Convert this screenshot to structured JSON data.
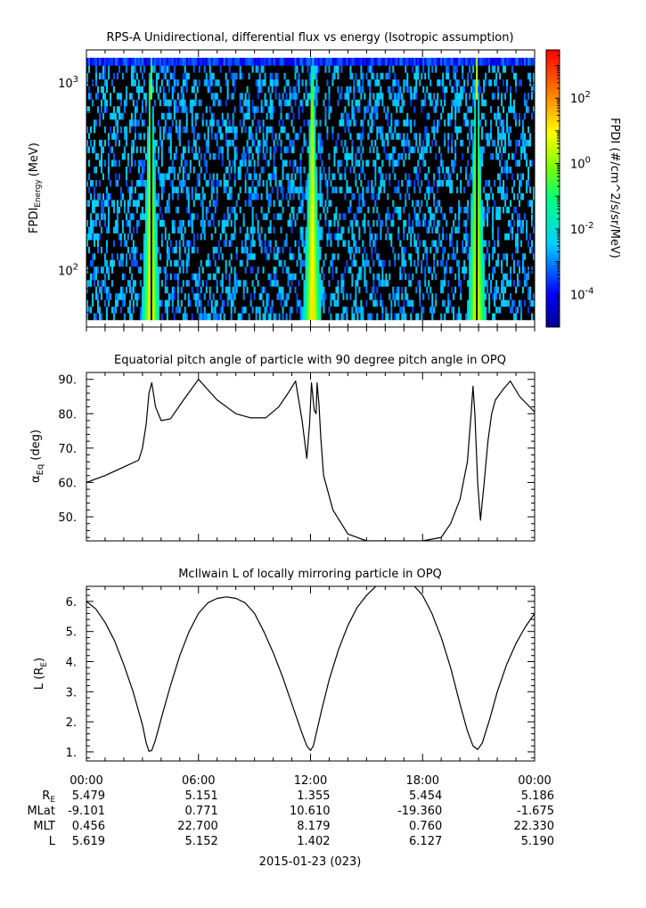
{
  "chart_data": [
    {
      "type": "heatmap",
      "title": "RPS-A Unidirectional, differential flux vs energy (Isotropic assumption)",
      "ylabel_main": "FPDI",
      "ylabel_sub": "Energy",
      "ylabel_unit": "(MeV)",
      "yscale": "log",
      "ylim": [
        50,
        1500
      ],
      "yticks": [
        100,
        1000
      ],
      "ytick_labels": [
        {
          "base": "10",
          "exp": "2",
          "value": 100
        },
        {
          "base": "10",
          "exp": "3",
          "value": 1000
        }
      ],
      "xlim_hours": [
        0,
        24
      ],
      "colorbar": {
        "label": "FPDI (#/cm^2/s/sr/MeV)",
        "scale": "log",
        "range": [
          1e-05,
          3000
        ],
        "ticks": [
          {
            "base": "10",
            "exp": "2",
            "value": 100
          },
          {
            "base": "10",
            "exp": "0",
            "value": 1
          },
          {
            "base": "10",
            "exp": "-2",
            "value": 0.01
          },
          {
            "base": "10",
            "exp": "-4",
            "value": 0.0001
          }
        ],
        "colormap": "rainbow"
      },
      "energy_channels": [
        57,
        62,
        67,
        73,
        79,
        86,
        93,
        101,
        110,
        119,
        129,
        140,
        152,
        165,
        179,
        195,
        211,
        229,
        249,
        270,
        293,
        318,
        345,
        375,
        407,
        442,
        480,
        521,
        566,
        614,
        667,
        724,
        786,
        853,
        926,
        1005,
        1091,
        1185,
        1300
      ],
      "belt_passes": [
        {
          "center_hour": 3.45,
          "peak_log_flux": 1.6
        },
        {
          "center_hour": 12.1,
          "peak_log_flux": 1.6
        },
        {
          "center_hour": 20.9,
          "peak_log_flux": 1.2
        }
      ],
      "background_log_flux": -4.2
    },
    {
      "type": "line",
      "title": "Equatorial pitch angle of particle with 90 degree pitch angle in OPQ",
      "ylabel_main": "α",
      "ylabel_sub": "Eq",
      "ylabel_unit": "(deg)",
      "ylim": [
        43,
        92
      ],
      "yticks": [
        50,
        60,
        70,
        80,
        90
      ],
      "ytick_labels": [
        "50.",
        "60.",
        "70.",
        "80.",
        "90."
      ],
      "x": [
        0,
        1,
        2,
        2.8,
        3.0,
        3.2,
        3.35,
        3.5,
        3.7,
        4.0,
        4.5,
        5.2,
        6.0,
        7.0,
        8.0,
        8.8,
        9.6,
        10.3,
        10.8,
        11.2,
        11.55,
        11.8,
        11.95,
        12.05,
        12.2,
        12.3,
        12.35,
        12.45,
        12.55,
        12.7,
        13.2,
        14.0,
        15.0,
        16.0,
        16.5,
        17.0,
        17.5,
        18.0,
        19.0,
        19.5,
        20.0,
        20.4,
        20.6,
        20.7,
        20.8,
        20.95,
        21.1,
        21.3,
        21.5,
        21.7,
        21.9,
        22.3,
        22.7,
        23.2,
        24.0
      ],
      "y": [
        60,
        62,
        64.5,
        66.5,
        70,
        77,
        86,
        89,
        82,
        78,
        78.5,
        84,
        90,
        84,
        80,
        78.8,
        78.8,
        82,
        86,
        89.5,
        78,
        67,
        77,
        89,
        81,
        80,
        89,
        83,
        73,
        62,
        52,
        45,
        43,
        43,
        43,
        43,
        43,
        43,
        44,
        48,
        55,
        66,
        80,
        88,
        80,
        60,
        49,
        60,
        72,
        80,
        84,
        87,
        89.5,
        85,
        80.5
      ]
    },
    {
      "type": "line",
      "title": "McIlwain L of locally mirroring particle in OPQ",
      "ylabel_main": "L (R",
      "ylabel_sub": "E",
      "ylabel_unit": ")",
      "ylim": [
        0.7,
        6.5
      ],
      "yticks": [
        1,
        2,
        3,
        4,
        5,
        6
      ],
      "ytick_labels": [
        "1.",
        "2.",
        "3.",
        "4.",
        "5.",
        "6."
      ],
      "x": [
        0,
        0.5,
        1,
        1.5,
        2,
        2.5,
        3.0,
        3.2,
        3.35,
        3.5,
        3.7,
        4.0,
        4.5,
        5.0,
        5.5,
        6.0,
        6.5,
        7.0,
        7.5,
        8.0,
        8.5,
        9.0,
        9.5,
        10.0,
        10.5,
        11.0,
        11.5,
        11.8,
        12.0,
        12.15,
        12.3,
        12.6,
        13.0,
        13.5,
        14.0,
        14.5,
        15.0,
        15.5,
        16.0,
        16.5,
        17.0,
        17.5,
        18.0,
        18.5,
        19.0,
        19.5,
        20.0,
        20.4,
        20.7,
        20.95,
        21.2,
        21.6,
        22.0,
        22.5,
        23.0,
        23.5,
        24.0
      ],
      "y": [
        6.0,
        5.75,
        5.3,
        4.7,
        3.9,
        3.0,
        1.9,
        1.3,
        1.02,
        1.05,
        1.4,
        2.1,
        3.2,
        4.2,
        5.0,
        5.6,
        5.95,
        6.1,
        6.15,
        6.1,
        5.95,
        5.6,
        5.0,
        4.3,
        3.5,
        2.6,
        1.7,
        1.2,
        1.05,
        1.2,
        1.6,
        2.4,
        3.4,
        4.4,
        5.2,
        5.8,
        6.2,
        6.5,
        6.8,
        6.9,
        6.8,
        6.55,
        6.2,
        5.6,
        4.8,
        3.8,
        2.6,
        1.7,
        1.2,
        1.08,
        1.3,
        2.1,
        3.0,
        3.9,
        4.6,
        5.15,
        5.6
      ]
    }
  ],
  "x_axis": {
    "tick_labels": [
      "00:00",
      "06:00",
      "12:00",
      "18:00",
      "00:00"
    ],
    "major_hours": [
      0,
      6,
      12,
      18,
      24
    ],
    "minor_step_hours": 1
  },
  "ephemeris": {
    "rows": [
      {
        "label": "R",
        "sub": "E",
        "values": [
          "5.479",
          "5.151",
          "1.355",
          "5.454",
          "5.186"
        ]
      },
      {
        "label": "MLat",
        "sub": "",
        "values": [
          "-9.101",
          "0.771",
          "10.610",
          "-19.360",
          "-1.675"
        ]
      },
      {
        "label": "MLT",
        "sub": "",
        "values": [
          "0.456",
          "22.700",
          "8.179",
          "0.760",
          "22.330"
        ]
      },
      {
        "label": "L",
        "sub": "",
        "values": [
          "5.619",
          "5.152",
          "1.402",
          "6.127",
          "5.190"
        ]
      }
    ]
  },
  "date_label": "2015-01-23 (023)"
}
